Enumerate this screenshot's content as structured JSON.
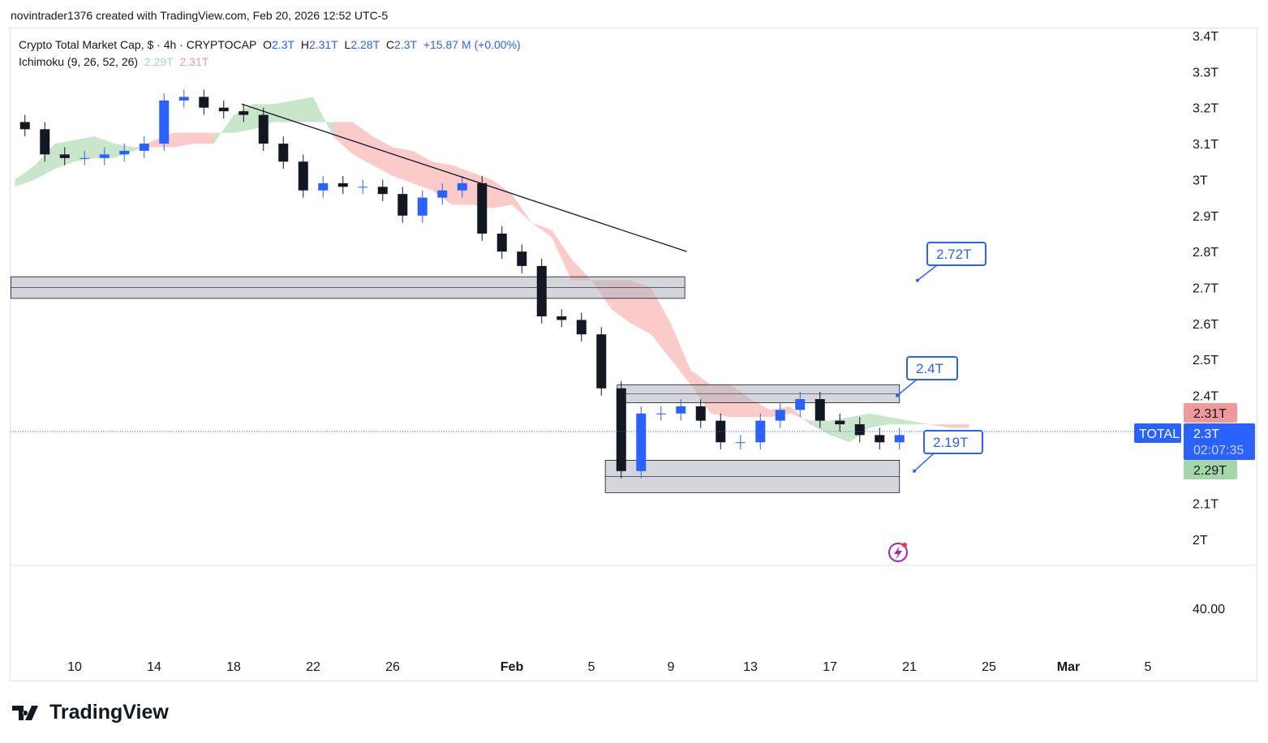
{
  "credit": "novintrader1376 created with TradingView.com, Feb 20, 2026 12:52 UTC-5",
  "legend": {
    "title": "Crypto Total Market Cap, $ · 4h · CRYPTOCAP",
    "o_label": "O",
    "o": "2.3T",
    "h_label": "H",
    "h": "2.31T",
    "l_label": "L",
    "l": "2.28T",
    "c_label": "C",
    "c": "2.3T",
    "change": "+15.87 M (+0.00%)",
    "indicator": "Ichimoku (9, 26, 52, 26)",
    "ind_v1": "2.29T",
    "ind_v2": "2.31T"
  },
  "price_tags": {
    "symbol": "TOTAL",
    "last": "2.3T",
    "countdown": "02:07:35",
    "upper": "2.31T",
    "lower": "2.29T"
  },
  "callouts": [
    {
      "label": "2.72T",
      "price": 2.72
    },
    {
      "label": "2.4T",
      "price": 2.4
    },
    {
      "label": "2.19T",
      "price": 2.19
    }
  ],
  "indicator_pane_label": "40.00",
  "logo": "TradingView",
  "colors": {
    "up": "#2962ff",
    "down": "#131722",
    "cloud_up": "#a5d6a7",
    "cloud_down": "#f7a9a5",
    "accent": "#2962ff"
  },
  "chart_data": {
    "type": "candlestick",
    "title": "Crypto Total Market Cap, $ · 4h · CRYPTOCAP",
    "y_ticks": [
      "3.4T",
      "3.3T",
      "3.2T",
      "3.1T",
      "3T",
      "2.9T",
      "2.8T",
      "2.7T",
      "2.6T",
      "2.5T",
      "2.4T",
      "2.1T",
      "2T"
    ],
    "y_tick_values": [
      3.4,
      3.3,
      3.2,
      3.1,
      3.0,
      2.9,
      2.8,
      2.7,
      2.6,
      2.5,
      2.4,
      2.1,
      2.0
    ],
    "ylim": [
      2.0,
      3.4
    ],
    "x_ticks": [
      "10",
      "14",
      "18",
      "22",
      "26",
      "Feb",
      "5",
      "9",
      "13",
      "17",
      "21",
      "25",
      "Mar",
      "5"
    ],
    "x_tick_days": [
      10,
      14,
      18,
      22,
      26,
      32,
      36,
      40,
      44,
      48,
      52,
      56,
      60,
      64
    ],
    "day_start": 7,
    "daily_closes": [
      3.14,
      3.07,
      3.06,
      3.06,
      3.07,
      3.08,
      3.1,
      3.22,
      3.23,
      3.2,
      3.19,
      3.18,
      3.1,
      3.05,
      2.97,
      2.99,
      2.98,
      2.98,
      2.96,
      2.9,
      2.95,
      2.97,
      2.99,
      2.85,
      2.8,
      2.76,
      2.62,
      2.61,
      2.57,
      2.42,
      2.19,
      2.35,
      2.35,
      2.37,
      2.33,
      2.27,
      2.27,
      2.33,
      2.36,
      2.39,
      2.33,
      2.32,
      2.29,
      2.27,
      2.29
    ],
    "cloud_span_a": [
      3.0,
      3.04,
      3.1,
      3.11,
      3.12,
      3.1,
      3.09,
      3.09,
      3.09,
      3.1,
      3.1,
      3.18,
      3.21,
      3.21,
      3.22,
      3.23,
      3.12,
      3.07,
      3.04,
      3.01,
      2.99,
      2.97,
      2.93,
      2.93,
      2.92,
      2.93,
      2.88,
      2.84,
      2.72,
      2.72,
      2.64,
      2.6,
      2.57,
      2.5,
      2.43,
      2.35,
      2.34,
      2.34,
      2.34,
      2.35,
      2.33,
      2.33,
      2.34,
      2.35,
      2.34,
      2.33,
      2.32,
      2.31,
      2.31
    ],
    "cloud_span_b": [
      2.98,
      3.0,
      3.03,
      3.05,
      3.06,
      3.06,
      3.08,
      3.11,
      3.13,
      3.13,
      3.13,
      3.13,
      3.14,
      3.16,
      3.16,
      3.16,
      3.16,
      3.16,
      3.12,
      3.09,
      3.08,
      3.05,
      3.04,
      3.02,
      3.0,
      2.96,
      2.88,
      2.86,
      2.78,
      2.72,
      2.72,
      2.72,
      2.7,
      2.6,
      2.47,
      2.43,
      2.43,
      2.39,
      2.36,
      2.37,
      2.32,
      2.29,
      2.27,
      2.31,
      2.32,
      2.32,
      2.32,
      2.32,
      2.32
    ],
    "zones": [
      {
        "from_day": 6.8,
        "to_day": 40.7,
        "low": 2.67,
        "high": 2.73
      },
      {
        "from_day": 37.3,
        "to_day": 51.5,
        "low": 2.38,
        "high": 2.43
      },
      {
        "from_day": 36.7,
        "to_day": 51.5,
        "low": 2.13,
        "high": 2.22
      }
    ],
    "trendline": {
      "from": [
        18.4,
        3.21
      ],
      "to": [
        40.8,
        2.8
      ]
    },
    "last_price": 2.3
  }
}
